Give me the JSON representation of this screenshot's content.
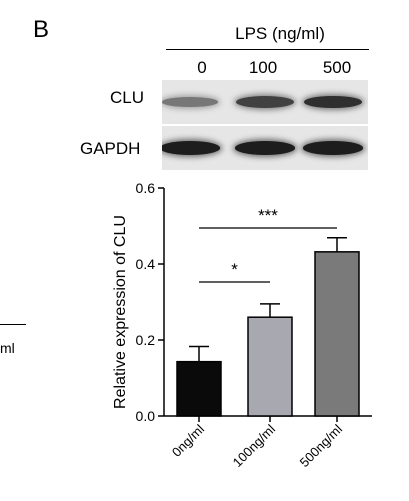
{
  "panel": {
    "label": "B"
  },
  "blot": {
    "header": "LPS (ng/ml)",
    "lanes": [
      "0",
      "100",
      "500"
    ],
    "rows": [
      {
        "label": "CLU",
        "intensity": [
          0.45,
          0.75,
          0.85
        ]
      },
      {
        "label": "GAPDH",
        "intensity": [
          0.95,
          0.95,
          0.95
        ]
      }
    ]
  },
  "left_fragment_text": "ml",
  "chart_data": {
    "type": "bar",
    "categories": [
      "0ng/ml",
      "100ng/ml",
      "500ng/ml"
    ],
    "values": [
      0.143,
      0.26,
      0.432
    ],
    "errors": [
      0.04,
      0.035,
      0.037
    ],
    "bar_colors": [
      "#0a0a0a",
      "#a8a8b0",
      "#7a7a7a"
    ],
    "title": "",
    "xlabel": "",
    "ylabel": "Relative expression of CLU",
    "ylim": [
      0,
      0.6
    ],
    "yticks": [
      0.0,
      0.2,
      0.4,
      0.6
    ],
    "ytick_labels": [
      "0.0",
      "0.2",
      "0.4",
      "0.6"
    ],
    "significance": [
      {
        "from": 0,
        "to": 1,
        "label": "*"
      },
      {
        "from": 0,
        "to": 2,
        "label": "***"
      }
    ]
  }
}
